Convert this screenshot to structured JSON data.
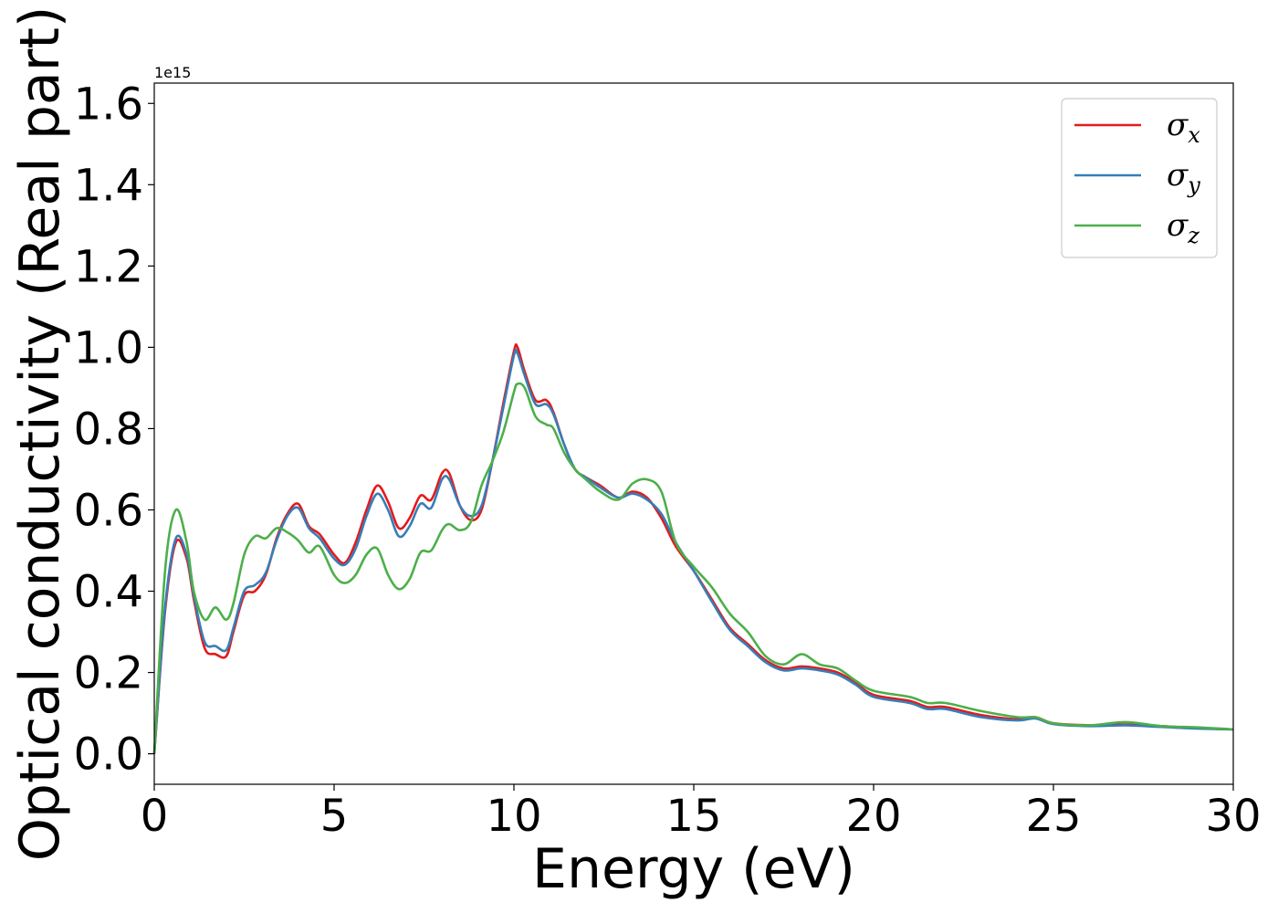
{
  "chart_data": {
    "type": "line",
    "title": "",
    "xlabel": "Energy (eV)",
    "ylabel": "Optical conductivity (Real part)",
    "y_offset_label": "1e15",
    "xlim": [
      0,
      30
    ],
    "ylim": [
      -0.075,
      1.65
    ],
    "xticks": [
      0,
      5,
      10,
      15,
      20,
      25,
      30
    ],
    "xtick_labels": [
      "0",
      "5",
      "10",
      "15",
      "20",
      "25",
      "30"
    ],
    "yticks": [
      0.0,
      0.2,
      0.4,
      0.6,
      0.8,
      1.0,
      1.2,
      1.4,
      1.6
    ],
    "ytick_labels": [
      "0.0",
      "0.2",
      "0.4",
      "0.6",
      "0.8",
      "1.0",
      "1.2",
      "1.4",
      "1.6"
    ],
    "grid": false,
    "legend_position": "top-right",
    "series": [
      {
        "name": "σx",
        "name_base": "σ",
        "name_sub": "x",
        "color": "#e41a1c",
        "x": [
          0,
          0.3,
          0.6,
          0.9,
          1.1,
          1.4,
          1.7,
          2.0,
          2.2,
          2.5,
          2.8,
          3.1,
          3.4,
          3.7,
          4.0,
          4.3,
          4.6,
          5.0,
          5.3,
          5.6,
          5.9,
          6.2,
          6.5,
          6.8,
          7.1,
          7.4,
          7.7,
          8.0,
          8.2,
          8.5,
          8.8,
          9.1,
          9.4,
          9.7,
          10.0,
          10.1,
          10.3,
          10.6,
          10.9,
          11.1,
          11.4,
          11.7,
          12.0,
          12.4,
          12.9,
          13.3,
          13.7,
          14.1,
          14.5,
          15.0,
          15.5,
          16.0,
          16.5,
          17.0,
          17.5,
          18.0,
          18.5,
          19.0,
          19.5,
          20.0,
          21.0,
          21.5,
          22.0,
          23.0,
          24.0,
          24.5,
          25.0,
          26.0,
          27.0,
          28.0,
          29.0,
          30.0
        ],
        "values": [
          0.0,
          0.35,
          0.52,
          0.48,
          0.38,
          0.26,
          0.245,
          0.24,
          0.3,
          0.39,
          0.4,
          0.44,
          0.53,
          0.59,
          0.615,
          0.56,
          0.54,
          0.49,
          0.47,
          0.52,
          0.6,
          0.66,
          0.62,
          0.555,
          0.58,
          0.635,
          0.625,
          0.69,
          0.69,
          0.61,
          0.575,
          0.6,
          0.72,
          0.86,
          0.99,
          1.0,
          0.94,
          0.87,
          0.87,
          0.84,
          0.76,
          0.7,
          0.68,
          0.66,
          0.63,
          0.645,
          0.63,
          0.58,
          0.51,
          0.45,
          0.38,
          0.31,
          0.27,
          0.23,
          0.21,
          0.215,
          0.21,
          0.2,
          0.175,
          0.145,
          0.13,
          0.115,
          0.115,
          0.095,
          0.085,
          0.09,
          0.075,
          0.07,
          0.072,
          0.068,
          0.063,
          0.06
        ]
      },
      {
        "name": "σy",
        "name_base": "σ",
        "name_sub": "y",
        "color": "#377eb8",
        "x": [
          0,
          0.3,
          0.6,
          0.9,
          1.1,
          1.4,
          1.7,
          2.0,
          2.2,
          2.5,
          2.8,
          3.1,
          3.4,
          3.7,
          4.0,
          4.3,
          4.6,
          5.0,
          5.3,
          5.6,
          5.9,
          6.2,
          6.5,
          6.8,
          7.1,
          7.4,
          7.7,
          8.0,
          8.2,
          8.5,
          8.8,
          9.1,
          9.4,
          9.7,
          10.0,
          10.1,
          10.3,
          10.6,
          10.9,
          11.1,
          11.4,
          11.7,
          12.0,
          12.4,
          12.9,
          13.3,
          13.7,
          14.1,
          14.5,
          15.0,
          15.5,
          16.0,
          16.5,
          17.0,
          17.5,
          18.0,
          18.5,
          19.0,
          19.5,
          20.0,
          21.0,
          21.5,
          22.0,
          23.0,
          24.0,
          24.5,
          25.0,
          26.0,
          27.0,
          28.0,
          29.0,
          30.0
        ],
        "values": [
          0.0,
          0.36,
          0.53,
          0.49,
          0.39,
          0.275,
          0.265,
          0.255,
          0.31,
          0.4,
          0.415,
          0.445,
          0.525,
          0.585,
          0.605,
          0.555,
          0.53,
          0.48,
          0.465,
          0.505,
          0.585,
          0.64,
          0.6,
          0.535,
          0.56,
          0.615,
          0.605,
          0.675,
          0.675,
          0.61,
          0.585,
          0.61,
          0.72,
          0.85,
          0.98,
          0.985,
          0.93,
          0.86,
          0.86,
          0.835,
          0.76,
          0.7,
          0.68,
          0.655,
          0.63,
          0.64,
          0.625,
          0.59,
          0.52,
          0.45,
          0.375,
          0.305,
          0.265,
          0.225,
          0.205,
          0.21,
          0.205,
          0.195,
          0.17,
          0.14,
          0.125,
          0.11,
          0.11,
          0.09,
          0.082,
          0.087,
          0.073,
          0.068,
          0.07,
          0.066,
          0.062,
          0.06
        ]
      },
      {
        "name": "σz",
        "name_base": "σ",
        "name_sub": "z",
        "color": "#4daf4a",
        "x": [
          0,
          0.3,
          0.6,
          0.9,
          1.1,
          1.4,
          1.7,
          2.0,
          2.2,
          2.5,
          2.8,
          3.1,
          3.4,
          3.7,
          4.0,
          4.3,
          4.6,
          5.0,
          5.3,
          5.6,
          5.9,
          6.2,
          6.5,
          6.8,
          7.1,
          7.4,
          7.7,
          8.0,
          8.2,
          8.5,
          8.8,
          9.1,
          9.4,
          9.7,
          10.0,
          10.1,
          10.3,
          10.6,
          10.9,
          11.1,
          11.4,
          11.7,
          12.0,
          12.4,
          12.9,
          13.3,
          13.7,
          14.1,
          14.5,
          15.0,
          15.5,
          16.0,
          16.5,
          17.0,
          17.5,
          18.0,
          18.5,
          19.0,
          19.5,
          20.0,
          21.0,
          21.5,
          22.0,
          23.0,
          24.0,
          24.5,
          25.0,
          26.0,
          27.0,
          28.0,
          29.0,
          30.0
        ],
        "values": [
          0.0,
          0.45,
          0.6,
          0.52,
          0.4,
          0.33,
          0.36,
          0.33,
          0.37,
          0.49,
          0.535,
          0.53,
          0.555,
          0.545,
          0.525,
          0.495,
          0.51,
          0.44,
          0.42,
          0.44,
          0.49,
          0.505,
          0.44,
          0.405,
          0.43,
          0.495,
          0.5,
          0.55,
          0.565,
          0.55,
          0.57,
          0.66,
          0.72,
          0.79,
          0.89,
          0.91,
          0.9,
          0.83,
          0.81,
          0.8,
          0.74,
          0.7,
          0.675,
          0.645,
          0.625,
          0.665,
          0.675,
          0.645,
          0.52,
          0.46,
          0.41,
          0.345,
          0.3,
          0.24,
          0.22,
          0.245,
          0.22,
          0.21,
          0.18,
          0.155,
          0.14,
          0.125,
          0.125,
          0.105,
          0.09,
          0.09,
          0.075,
          0.07,
          0.078,
          0.068,
          0.065,
          0.06
        ]
      }
    ]
  }
}
